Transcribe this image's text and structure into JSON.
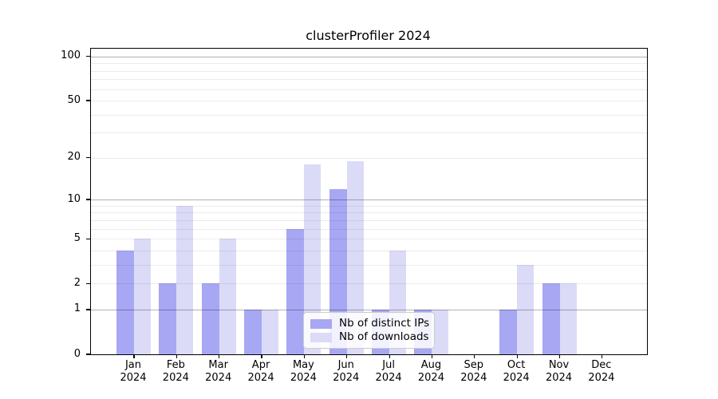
{
  "title": "clusterProfiler 2024",
  "chart_data": {
    "type": "bar",
    "title": "clusterProfiler 2024",
    "categories": [
      "Jan",
      "Feb",
      "Mar",
      "Apr",
      "May",
      "Jun",
      "Jul",
      "Aug",
      "Sep",
      "Oct",
      "Nov",
      "Dec"
    ],
    "category_year": "2024",
    "series": [
      {
        "name": "Nb of distinct IPs",
        "color": "#a7a7f3",
        "values": [
          4,
          2,
          2,
          1,
          6,
          12,
          1,
          1,
          0,
          1,
          2,
          0
        ]
      },
      {
        "name": "Nb of downloads",
        "color": "#dbdbf8",
        "values": [
          5,
          9,
          5,
          1,
          18,
          19,
          4,
          1,
          0,
          3,
          2,
          0
        ]
      }
    ],
    "xlabel": "",
    "ylabel": "",
    "y_ticks": [
      0,
      1,
      2,
      5,
      10,
      20,
      50,
      100
    ],
    "y_scale": "log10(value+1)",
    "ylim": [
      0,
      113
    ],
    "grid": {
      "major": [
        1,
        10,
        100
      ],
      "minor": [
        2,
        3,
        4,
        5,
        6,
        7,
        8,
        9,
        20,
        30,
        40,
        50,
        60,
        70,
        80,
        90
      ]
    },
    "legend": {
      "position": "lower center"
    }
  }
}
